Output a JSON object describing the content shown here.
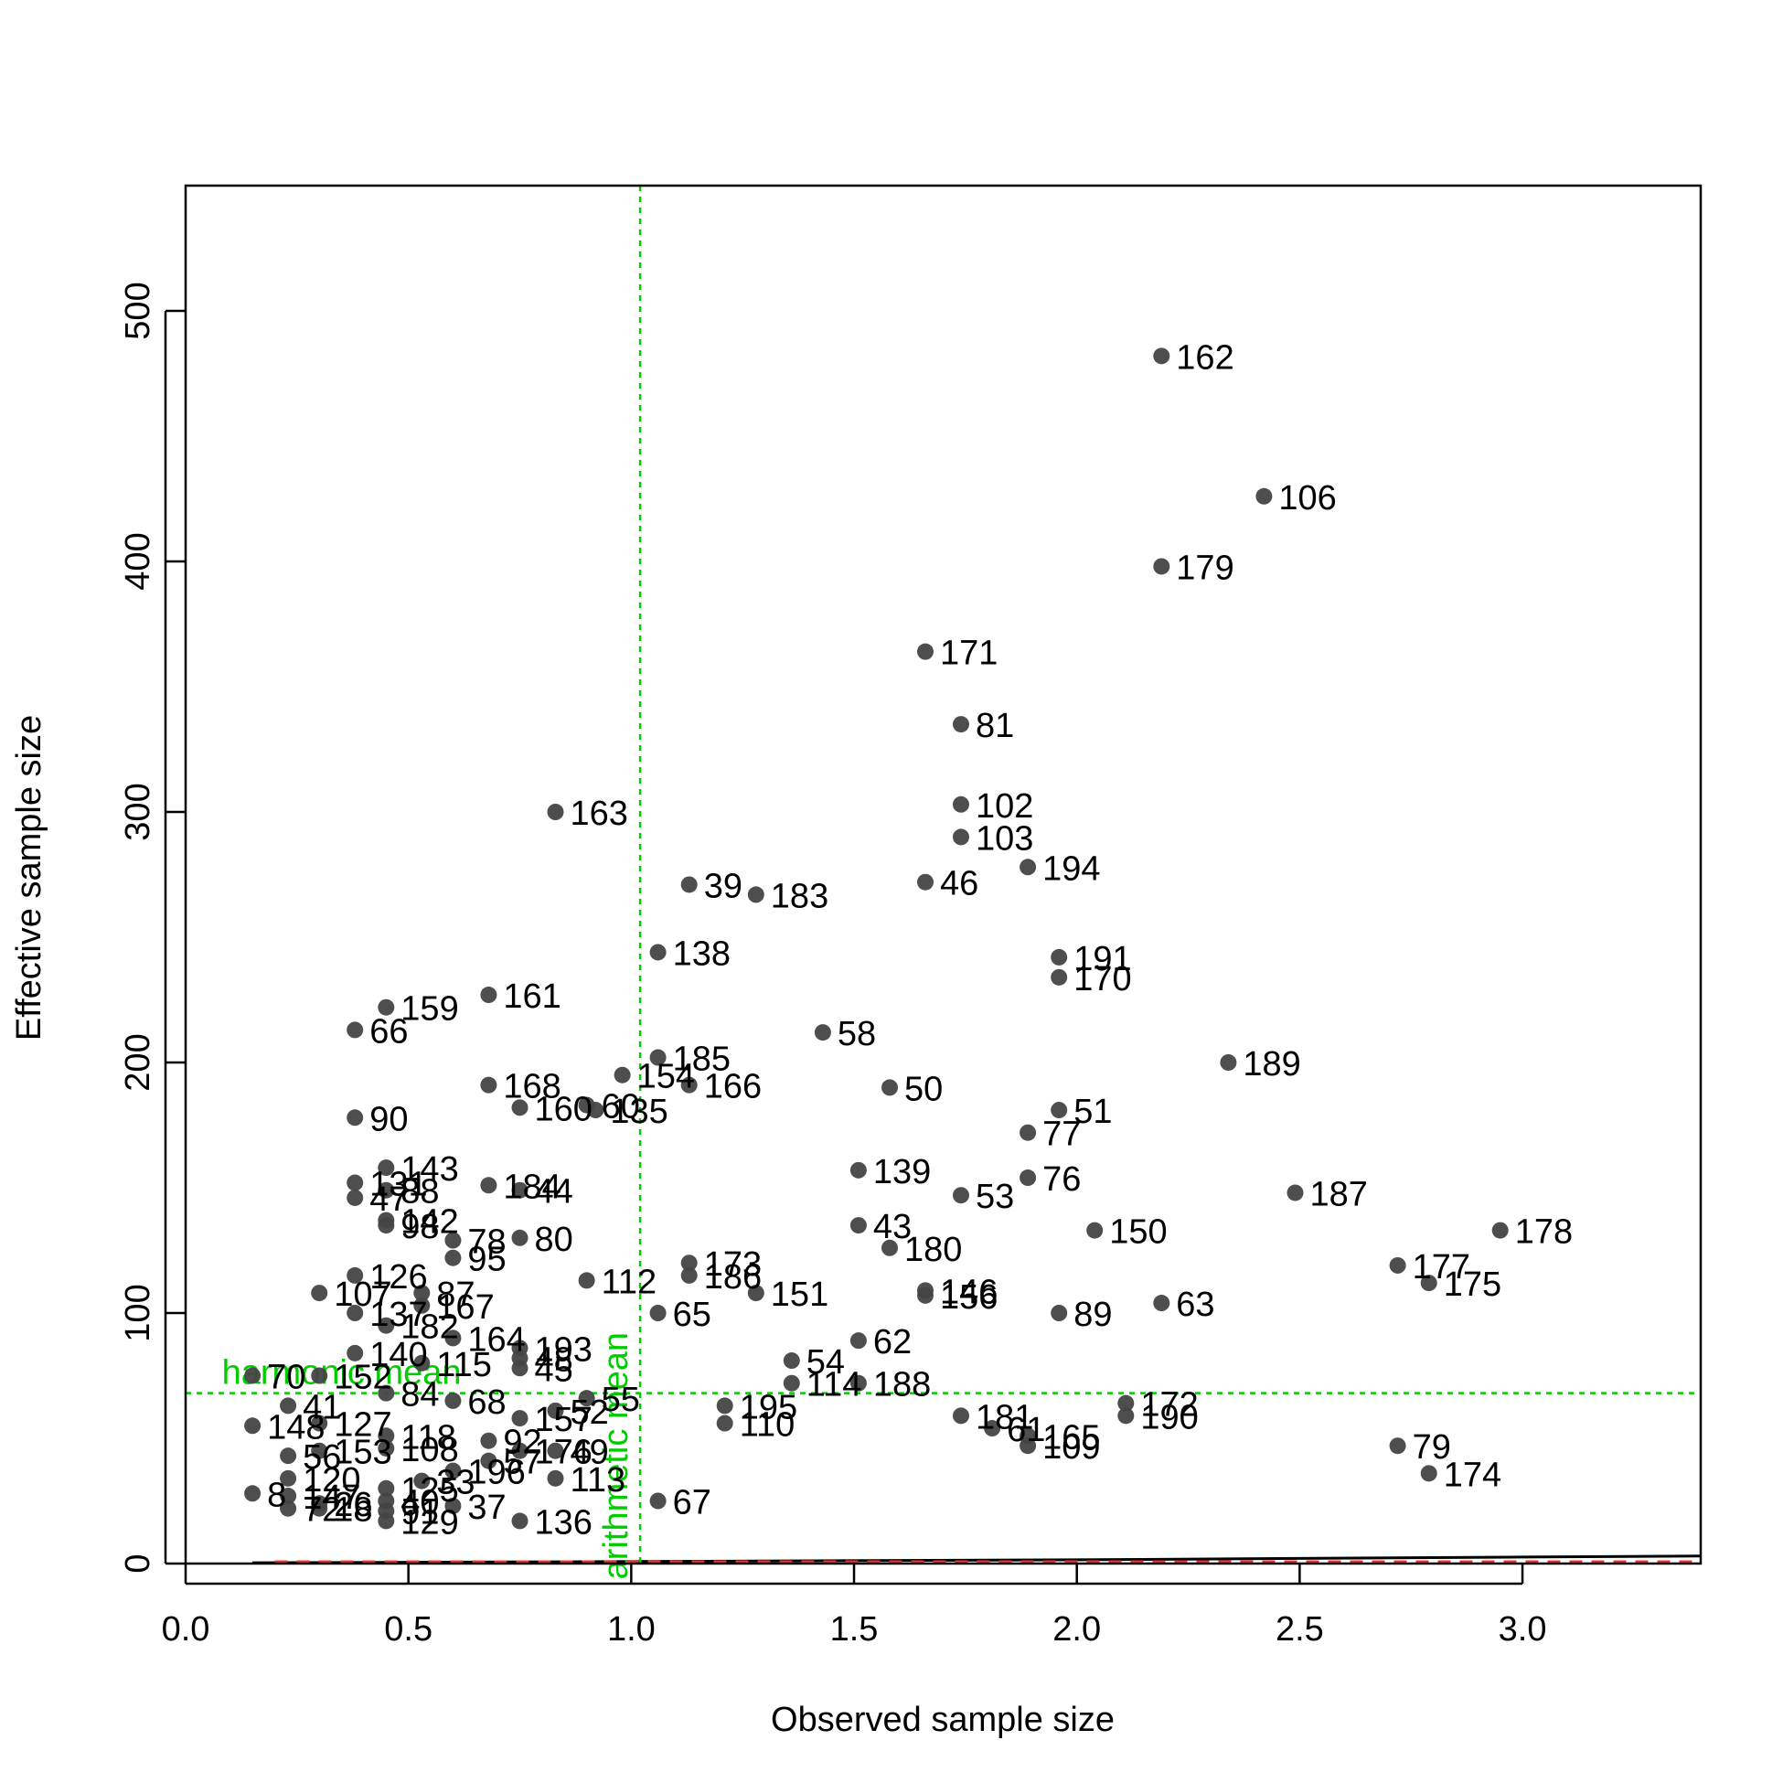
{
  "chart_data": {
    "type": "scatter",
    "title": "",
    "xlabel": "Observed sample size",
    "ylabel": "Effective sample size",
    "xlim": [
      0,
      3.4
    ],
    "ylim": [
      0,
      550
    ],
    "x_ticks": [
      "0.0",
      "0.5",
      "1.0",
      "1.5",
      "2.0",
      "2.5",
      "3.0"
    ],
    "y_ticks": [
      "0",
      "100",
      "200",
      "300",
      "400",
      "500"
    ],
    "grid": false,
    "colors": {
      "points": "#444444",
      "reference": "#00cc00",
      "dashed": "#ee3333",
      "axis": "#000000"
    },
    "reference_lines": {
      "arithmetic_mean": {
        "label": "arithmetic mean",
        "x": 1.02
      },
      "harmonic_mean": {
        "label": "harmonic mean",
        "y": 68
      }
    },
    "points": [
      {
        "label": "162",
        "x": 2.19,
        "y": 482
      },
      {
        "label": "106",
        "x": 2.42,
        "y": 426
      },
      {
        "label": "179",
        "x": 2.19,
        "y": 398
      },
      {
        "label": "171",
        "x": 1.66,
        "y": 364
      },
      {
        "label": "81",
        "x": 1.74,
        "y": 335
      },
      {
        "label": "102",
        "x": 1.74,
        "y": 303
      },
      {
        "label": "103",
        "x": 1.74,
        "y": 290
      },
      {
        "label": "194",
        "x": 1.89,
        "y": 278
      },
      {
        "label": "46",
        "x": 1.66,
        "y": 272
      },
      {
        "label": "163",
        "x": 0.83,
        "y": 300
      },
      {
        "label": "39",
        "x": 1.13,
        "y": 271
      },
      {
        "label": "183",
        "x": 1.28,
        "y": 267
      },
      {
        "label": "138",
        "x": 1.06,
        "y": 244
      },
      {
        "label": "191",
        "x": 1.96,
        "y": 242
      },
      {
        "label": "170",
        "x": 1.96,
        "y": 234
      },
      {
        "label": "159",
        "x": 0.45,
        "y": 222
      },
      {
        "label": "161",
        "x": 0.68,
        "y": 227
      },
      {
        "label": "66",
        "x": 0.38,
        "y": 213
      },
      {
        "label": "58",
        "x": 1.43,
        "y": 212
      },
      {
        "label": "185",
        "x": 1.06,
        "y": 202
      },
      {
        "label": "189",
        "x": 2.34,
        "y": 200
      },
      {
        "label": "154",
        "x": 0.98,
        "y": 195
      },
      {
        "label": "166",
        "x": 1.13,
        "y": 191
      },
      {
        "label": "168",
        "x": 0.68,
        "y": 191
      },
      {
        "label": "50",
        "x": 1.58,
        "y": 190
      },
      {
        "label": "160",
        "x": 0.75,
        "y": 182
      },
      {
        "label": "60",
        "x": 0.9,
        "y": 183
      },
      {
        "label": "135",
        "x": 0.92,
        "y": 181
      },
      {
        "label": "51",
        "x": 1.96,
        "y": 181
      },
      {
        "label": "90",
        "x": 0.38,
        "y": 178
      },
      {
        "label": "77",
        "x": 1.89,
        "y": 172
      },
      {
        "label": "143",
        "x": 0.45,
        "y": 158
      },
      {
        "label": "139",
        "x": 1.51,
        "y": 157
      },
      {
        "label": "76",
        "x": 1.89,
        "y": 154
      },
      {
        "label": "131",
        "x": 0.38,
        "y": 152
      },
      {
        "label": "184",
        "x": 0.68,
        "y": 151
      },
      {
        "label": "44",
        "x": 0.75,
        "y": 149
      },
      {
        "label": "187",
        "x": 2.49,
        "y": 148
      },
      {
        "label": "88",
        "x": 0.45,
        "y": 149
      },
      {
        "label": "47",
        "x": 0.38,
        "y": 146
      },
      {
        "label": "53",
        "x": 1.74,
        "y": 147
      },
      {
        "label": "142",
        "x": 0.45,
        "y": 137
      },
      {
        "label": "98",
        "x": 0.45,
        "y": 135
      },
      {
        "label": "43",
        "x": 1.51,
        "y": 135
      },
      {
        "label": "178",
        "x": 2.95,
        "y": 133
      },
      {
        "label": "150",
        "x": 2.04,
        "y": 133
      },
      {
        "label": "78",
        "x": 0.6,
        "y": 129
      },
      {
        "label": "80",
        "x": 0.75,
        "y": 130
      },
      {
        "label": "180",
        "x": 1.58,
        "y": 126
      },
      {
        "label": "95",
        "x": 0.6,
        "y": 122
      },
      {
        "label": "173",
        "x": 1.13,
        "y": 120
      },
      {
        "label": "177",
        "x": 2.72,
        "y": 119
      },
      {
        "label": "186",
        "x": 1.13,
        "y": 115
      },
      {
        "label": "126",
        "x": 0.38,
        "y": 115
      },
      {
        "label": "112",
        "x": 0.9,
        "y": 113
      },
      {
        "label": "175",
        "x": 2.79,
        "y": 112
      },
      {
        "label": "107",
        "x": 0.3,
        "y": 108
      },
      {
        "label": "87",
        "x": 0.53,
        "y": 108
      },
      {
        "label": "146",
        "x": 1.66,
        "y": 109
      },
      {
        "label": "151",
        "x": 1.28,
        "y": 108
      },
      {
        "label": "156",
        "x": 1.66,
        "y": 107
      },
      {
        "label": "167",
        "x": 0.53,
        "y": 103
      },
      {
        "label": "63",
        "x": 2.19,
        "y": 104
      },
      {
        "label": "137",
        "x": 0.38,
        "y": 100
      },
      {
        "label": "65",
        "x": 1.06,
        "y": 100
      },
      {
        "label": "89",
        "x": 1.96,
        "y": 100
      },
      {
        "label": "182",
        "x": 0.45,
        "y": 95
      },
      {
        "label": "164",
        "x": 0.6,
        "y": 90
      },
      {
        "label": "62",
        "x": 1.51,
        "y": 89
      },
      {
        "label": "193",
        "x": 0.75,
        "y": 86
      },
      {
        "label": "140",
        "x": 0.38,
        "y": 84
      },
      {
        "label": "48",
        "x": 0.75,
        "y": 82
      },
      {
        "label": "54",
        "x": 1.36,
        "y": 81
      },
      {
        "label": "115",
        "x": 0.53,
        "y": 80
      },
      {
        "label": "45",
        "x": 0.75,
        "y": 78
      },
      {
        "label": "70",
        "x": 0.15,
        "y": 75
      },
      {
        "label": "152",
        "x": 0.3,
        "y": 75
      },
      {
        "label": "114",
        "x": 1.36,
        "y": 72
      },
      {
        "label": "188",
        "x": 1.51,
        "y": 72
      },
      {
        "label": "84",
        "x": 0.45,
        "y": 68
      },
      {
        "label": "68",
        "x": 0.6,
        "y": 65
      },
      {
        "label": "55",
        "x": 0.9,
        "y": 66
      },
      {
        "label": "195",
        "x": 1.21,
        "y": 63
      },
      {
        "label": "172",
        "x": 2.11,
        "y": 64
      },
      {
        "label": "41",
        "x": 0.23,
        "y": 63
      },
      {
        "label": "52",
        "x": 0.83,
        "y": 61
      },
      {
        "label": "190",
        "x": 2.11,
        "y": 59
      },
      {
        "label": "181",
        "x": 1.74,
        "y": 59
      },
      {
        "label": "157",
        "x": 0.75,
        "y": 58
      },
      {
        "label": "110",
        "x": 1.21,
        "y": 56
      },
      {
        "label": "148",
        "x": 0.15,
        "y": 55
      },
      {
        "label": "127",
        "x": 0.3,
        "y": 56
      },
      {
        "label": "61",
        "x": 1.81,
        "y": 54
      },
      {
        "label": "165",
        "x": 1.89,
        "y": 51
      },
      {
        "label": "118",
        "x": 0.45,
        "y": 51
      },
      {
        "label": "92",
        "x": 0.68,
        "y": 49
      },
      {
        "label": "109",
        "x": 1.89,
        "y": 47
      },
      {
        "label": "79",
        "x": 2.72,
        "y": 47
      },
      {
        "label": "108",
        "x": 0.45,
        "y": 46
      },
      {
        "label": "176",
        "x": 0.75,
        "y": 45
      },
      {
        "label": "49",
        "x": 0.83,
        "y": 45
      },
      {
        "label": "153",
        "x": 0.3,
        "y": 45
      },
      {
        "label": "56",
        "x": 0.23,
        "y": 43
      },
      {
        "label": "57",
        "x": 0.68,
        "y": 41
      },
      {
        "label": "174",
        "x": 2.79,
        "y": 36
      },
      {
        "label": "196",
        "x": 0.6,
        "y": 37
      },
      {
        "label": "113",
        "x": 0.83,
        "y": 34
      },
      {
        "label": "120",
        "x": 0.23,
        "y": 34
      },
      {
        "label": "33",
        "x": 0.53,
        "y": 33
      },
      {
        "label": "125",
        "x": 0.45,
        "y": 30
      },
      {
        "label": "8",
        "x": 0.15,
        "y": 28
      },
      {
        "label": "147",
        "x": 0.23,
        "y": 27
      },
      {
        "label": "67",
        "x": 1.06,
        "y": 25
      },
      {
        "label": "26",
        "x": 0.3,
        "y": 24
      },
      {
        "label": "40",
        "x": 0.45,
        "y": 25
      },
      {
        "label": "37",
        "x": 0.6,
        "y": 23
      },
      {
        "label": "72",
        "x": 0.23,
        "y": 22
      },
      {
        "label": "18",
        "x": 0.3,
        "y": 22
      },
      {
        "label": "91",
        "x": 0.45,
        "y": 21
      },
      {
        "label": "136",
        "x": 0.75,
        "y": 17
      },
      {
        "label": "129",
        "x": 0.45,
        "y": 17
      }
    ]
  }
}
